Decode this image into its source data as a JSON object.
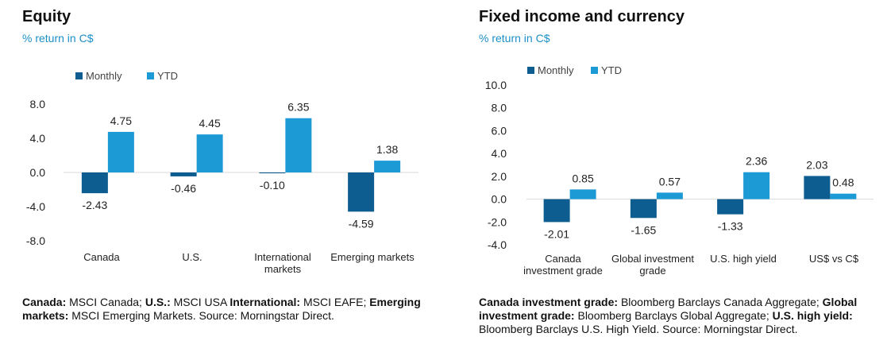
{
  "colors": {
    "monthly": "#0e5d91",
    "ytd": "#1c9ad6",
    "axis": "#d9d9d9",
    "accent": "#1c8fc7"
  },
  "left": {
    "title": "Equity",
    "subtitle": "% return in C$",
    "footnote": [
      {
        "label": "Canada:",
        "text": " MSCI Canada; "
      },
      {
        "label": "U.S.:",
        "text": " MSCI USA "
      },
      {
        "label": "International:",
        "text": " MSCI EAFE; "
      },
      {
        "label": "Emerging markets:",
        "text": " MSCI Emerging Markets. Source: Morningstar Direct."
      }
    ]
  },
  "right": {
    "title": "Fixed income and currency",
    "subtitle": "% return in C$",
    "footnote": [
      {
        "label": "Canada investment grade:",
        "text": " Bloomberg Barclays Canada Aggregate; "
      },
      {
        "label": "Global investment grade:",
        "text": " Bloomberg Barclays Global Aggregate; "
      },
      {
        "label": "U.S. high yield:",
        "text": " Bloomberg Barclays U.S. High Yield. Source: Morningstar Direct."
      }
    ]
  },
  "chart_data": [
    {
      "type": "bar",
      "title": "Equity",
      "ylabel": "% return in C$",
      "categories": [
        [
          "Canada"
        ],
        [
          "U.S."
        ],
        [
          "International",
          "markets"
        ],
        [
          "Emerging markets"
        ]
      ],
      "series": [
        {
          "name": "Monthly",
          "values": [
            -2.43,
            -0.46,
            -0.1,
            -4.59
          ]
        },
        {
          "name": "YTD",
          "values": [
            4.75,
            4.45,
            6.35,
            1.38
          ]
        }
      ],
      "value_labels": [
        [
          "-2.43",
          "-0.46",
          "-0.10",
          "-4.59"
        ],
        [
          "4.75",
          "4.45",
          "6.35",
          "1.38"
        ]
      ],
      "yticks": [
        8,
        4,
        0,
        -4,
        -8
      ],
      "ytick_labels": [
        "8.0",
        "4.0",
        "0.0",
        "-4.0",
        "-8.0"
      ],
      "ylim": [
        -8,
        8
      ],
      "legend": "top-left",
      "grid": false
    },
    {
      "type": "bar",
      "title": "Fixed income and currency",
      "ylabel": "% return in C$",
      "categories": [
        [
          "Canada",
          "investment grade"
        ],
        [
          "Global investment",
          "grade"
        ],
        [
          "U.S. high yield"
        ],
        [
          "US$ vs C$"
        ]
      ],
      "series": [
        {
          "name": "Monthly",
          "values": [
            -2.01,
            -1.65,
            -1.33,
            2.03
          ]
        },
        {
          "name": "YTD",
          "values": [
            0.85,
            0.57,
            2.36,
            0.48
          ]
        }
      ],
      "value_labels": [
        [
          "-2.01",
          "-1.65",
          "-1.33",
          "2.03"
        ],
        [
          "0.85",
          "0.57",
          "2.36",
          "0.48"
        ]
      ],
      "yticks": [
        10,
        8,
        6,
        4,
        2,
        0,
        -2,
        -4
      ],
      "ytick_labels": [
        "10.0",
        "8.0",
        "6.0",
        "4.0",
        "2.0",
        "0.0",
        "-2.0",
        "-4.0"
      ],
      "ylim": [
        -4,
        10
      ],
      "legend": "top-left",
      "grid": false
    }
  ]
}
